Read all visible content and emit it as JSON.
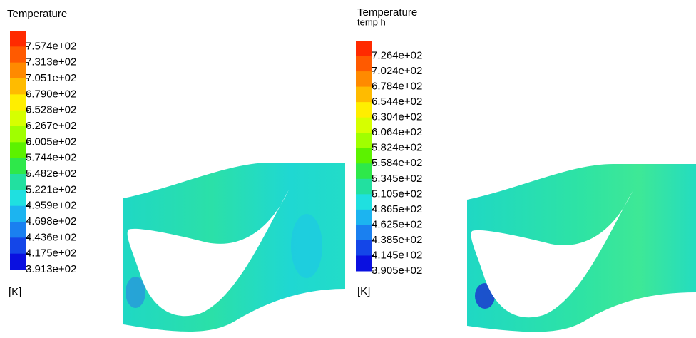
{
  "panels": [
    {
      "title": "Temperature",
      "unit": "[K]",
      "labels": [
        "7.574e+02",
        "7.313e+02",
        "7.051e+02",
        "6.790e+02",
        "6.528e+02",
        "6.267e+02",
        "6.005e+02",
        "5.744e+02",
        "5.482e+02",
        "5.221e+02",
        "4.959e+02",
        "4.698e+02",
        "4.436e+02",
        "4.175e+02",
        "3.913e+02"
      ]
    },
    {
      "title": "Temperature",
      "subtitle": "temp h",
      "unit": "[K]",
      "labels": [
        "7.264e+02",
        "7.024e+02",
        "6.784e+02",
        "6.544e+02",
        "6.304e+02",
        "6.064e+02",
        "5.824e+02",
        "5.584e+02",
        "5.345e+02",
        "5.105e+02",
        "4.865e+02",
        "4.625e+02",
        "4.385e+02",
        "4.145e+02",
        "3.905e+02"
      ]
    }
  ]
}
